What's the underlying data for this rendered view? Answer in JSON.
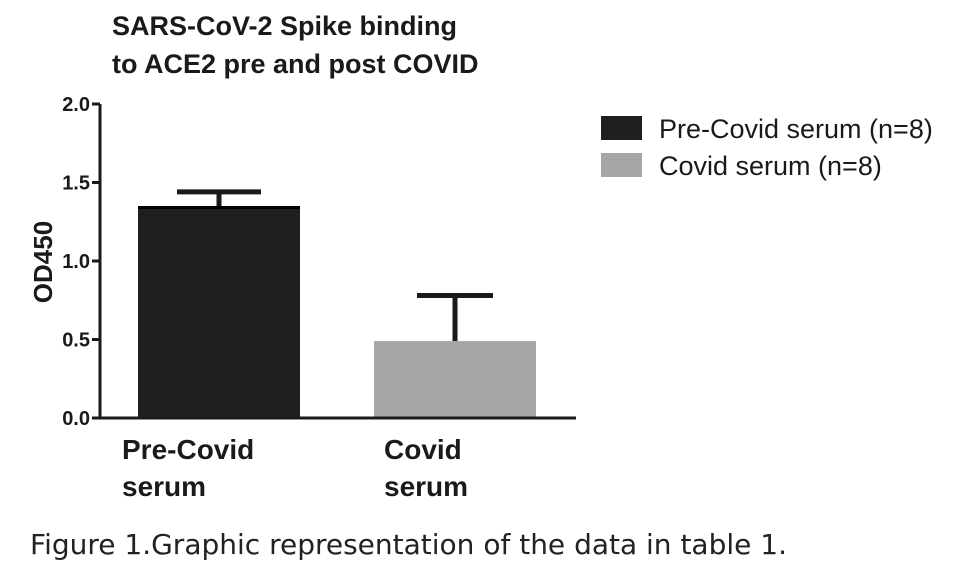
{
  "chart_data": {
    "type": "bar",
    "title_lines": [
      "SARS-CoV-2 Spike binding",
      "to ACE2 pre and post COVID"
    ],
    "ylabel": "OD450",
    "xlabel": "",
    "ylim": [
      0,
      2.0
    ],
    "yticks": [
      "0.0",
      "0.5",
      "1.0",
      "1.5",
      "2.0"
    ],
    "categories": [
      {
        "lines": [
          "Pre-Covid",
          "serum"
        ]
      },
      {
        "lines": [
          "Covid",
          "serum"
        ]
      }
    ],
    "series": [
      {
        "name": "Pre-Covid serum (n=8)",
        "value": 1.35,
        "error": 0.09,
        "color": "#1f1f1f"
      },
      {
        "name": "Covid serum (n=8)",
        "value": 0.49,
        "error": 0.29,
        "color": "#a5a6a8"
      }
    ],
    "grid": false,
    "legend_position": "top-right"
  },
  "caption": {
    "label": "Figure 1.",
    "text": "Graphic representation of the data in table 1."
  }
}
